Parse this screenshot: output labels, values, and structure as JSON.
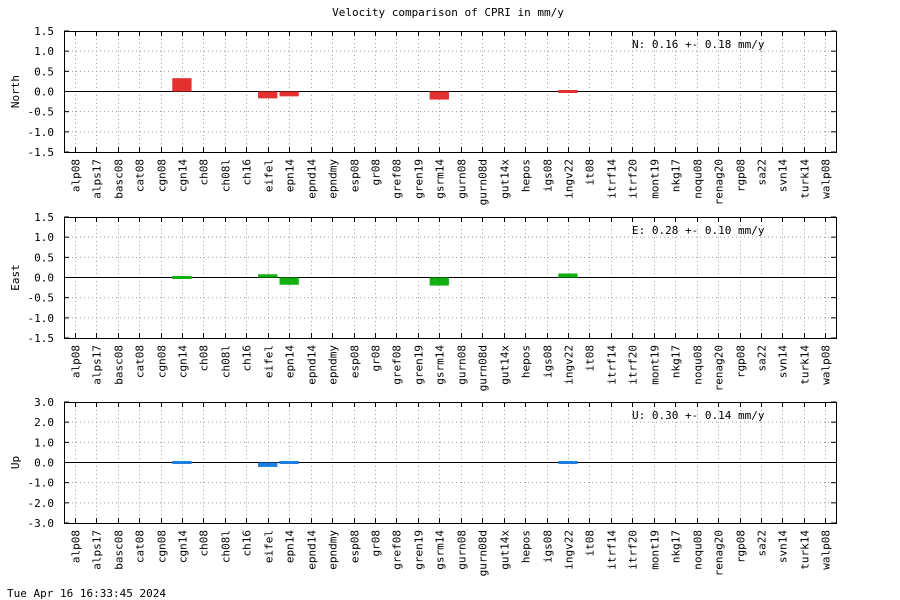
{
  "chart_data": [
    {
      "type": "bar",
      "title": "Velocity comparison of CPRI in mm/y",
      "ylabel": "North",
      "component": "N",
      "mean_text": "0.16 +-  0.18 mm/y",
      "ylim": [
        -1.5,
        1.5
      ],
      "yticks": [
        1.5,
        1.0,
        0.5,
        0.0,
        -0.5,
        -1.0,
        -1.5
      ],
      "ytick_labels": [
        "1.5",
        "1.0",
        "0.5",
        "0.0",
        "-0.5",
        "-1.0",
        "-1.5"
      ],
      "grid": true,
      "color": "#e53030",
      "categories": [
        "alp08",
        "alps17",
        "basc08",
        "cat08",
        "cgn08",
        "cgn14",
        "ch08",
        "ch08l",
        "ch16",
        "eifel",
        "epn14",
        "epnd14",
        "epndmy",
        "esp08",
        "gr08",
        "gref08",
        "gren19",
        "gsrm14",
        "gurn08",
        "gurn08d",
        "gut14x",
        "hepos",
        "igs08",
        "ingv22",
        "it08",
        "itrf14",
        "itrf20",
        "mont19",
        "nkg17",
        "noqu08",
        "renag20",
        "rgp08",
        "sa22",
        "svn14",
        "turk14",
        "walp08"
      ],
      "values": [
        null,
        null,
        null,
        null,
        null,
        0.33,
        null,
        null,
        null,
        -0.17,
        -0.12,
        null,
        null,
        null,
        null,
        null,
        null,
        -0.2,
        null,
        null,
        null,
        null,
        null,
        -0.07,
        null,
        null,
        null,
        null,
        null,
        null,
        null,
        null,
        null,
        null,
        null,
        null
      ]
    },
    {
      "type": "bar",
      "ylabel": "East",
      "component": "E",
      "mean_text": "0.28 +-  0.10 mm/y",
      "ylim": [
        -1.5,
        1.5
      ],
      "yticks": [
        1.5,
        1.0,
        0.5,
        0.0,
        -0.5,
        -1.0,
        -1.5
      ],
      "ytick_labels": [
        "1.5",
        "1.0",
        "0.5",
        "0.0",
        "-0.5",
        "-1.0",
        "-1.5"
      ],
      "grid": true,
      "color": "#12b012",
      "categories": [
        "alp08",
        "alps17",
        "basc08",
        "cat08",
        "cgn08",
        "cgn14",
        "ch08",
        "ch08l",
        "ch16",
        "eifel",
        "epn14",
        "epnd14",
        "epndmy",
        "esp08",
        "gr08",
        "gref08",
        "gren19",
        "gsrm14",
        "gurn08",
        "gurn08d",
        "gut14x",
        "hepos",
        "igs08",
        "ingv22",
        "it08",
        "itrf14",
        "itrf20",
        "mont19",
        "nkg17",
        "noqu08",
        "renag20",
        "rgp08",
        "sa22",
        "svn14",
        "turk14",
        "walp08"
      ],
      "values": [
        null,
        null,
        null,
        null,
        null,
        -0.05,
        null,
        null,
        null,
        0.08,
        -0.18,
        null,
        null,
        null,
        null,
        null,
        null,
        -0.2,
        null,
        null,
        null,
        null,
        null,
        0.1,
        null,
        null,
        null,
        null,
        null,
        null,
        null,
        null,
        null,
        null,
        null,
        null
      ]
    },
    {
      "type": "bar",
      "ylabel": "Up",
      "component": "U",
      "mean_text": "0.30 +-  0.14 mm/y",
      "ylim": [
        -3.0,
        3.0
      ],
      "yticks": [
        3.0,
        2.0,
        1.0,
        0.0,
        -1.0,
        -2.0,
        -3.0
      ],
      "ytick_labels": [
        "3.0",
        "2.0",
        "1.0",
        "0.0",
        "-1.0",
        "-2.0",
        "-3.0"
      ],
      "grid": true,
      "color": "#1a7fe0",
      "categories": [
        "alp08",
        "alps17",
        "basc08",
        "cat08",
        "cgn08",
        "cgn14",
        "ch08",
        "ch08l",
        "ch16",
        "eifel",
        "epn14",
        "epnd14",
        "epndmy",
        "esp08",
        "gr08",
        "gref08",
        "gren19",
        "gsrm14",
        "gurn08",
        "gurn08d",
        "gut14x",
        "hepos",
        "igs08",
        "ingv22",
        "it08",
        "itrf14",
        "itrf20",
        "mont19",
        "nkg17",
        "noqu08",
        "renag20",
        "rgp08",
        "sa22",
        "svn14",
        "turk14",
        "walp08"
      ],
      "values": [
        null,
        null,
        null,
        null,
        null,
        0.05,
        null,
        null,
        null,
        -0.22,
        0.05,
        null,
        null,
        null,
        null,
        null,
        null,
        null,
        null,
        null,
        null,
        null,
        null,
        0.08,
        null,
        null,
        null,
        null,
        null,
        null,
        null,
        null,
        null,
        null,
        null,
        null
      ]
    }
  ],
  "footer": {
    "timestamp": "Tue Apr 16 16:33:45 2024"
  }
}
